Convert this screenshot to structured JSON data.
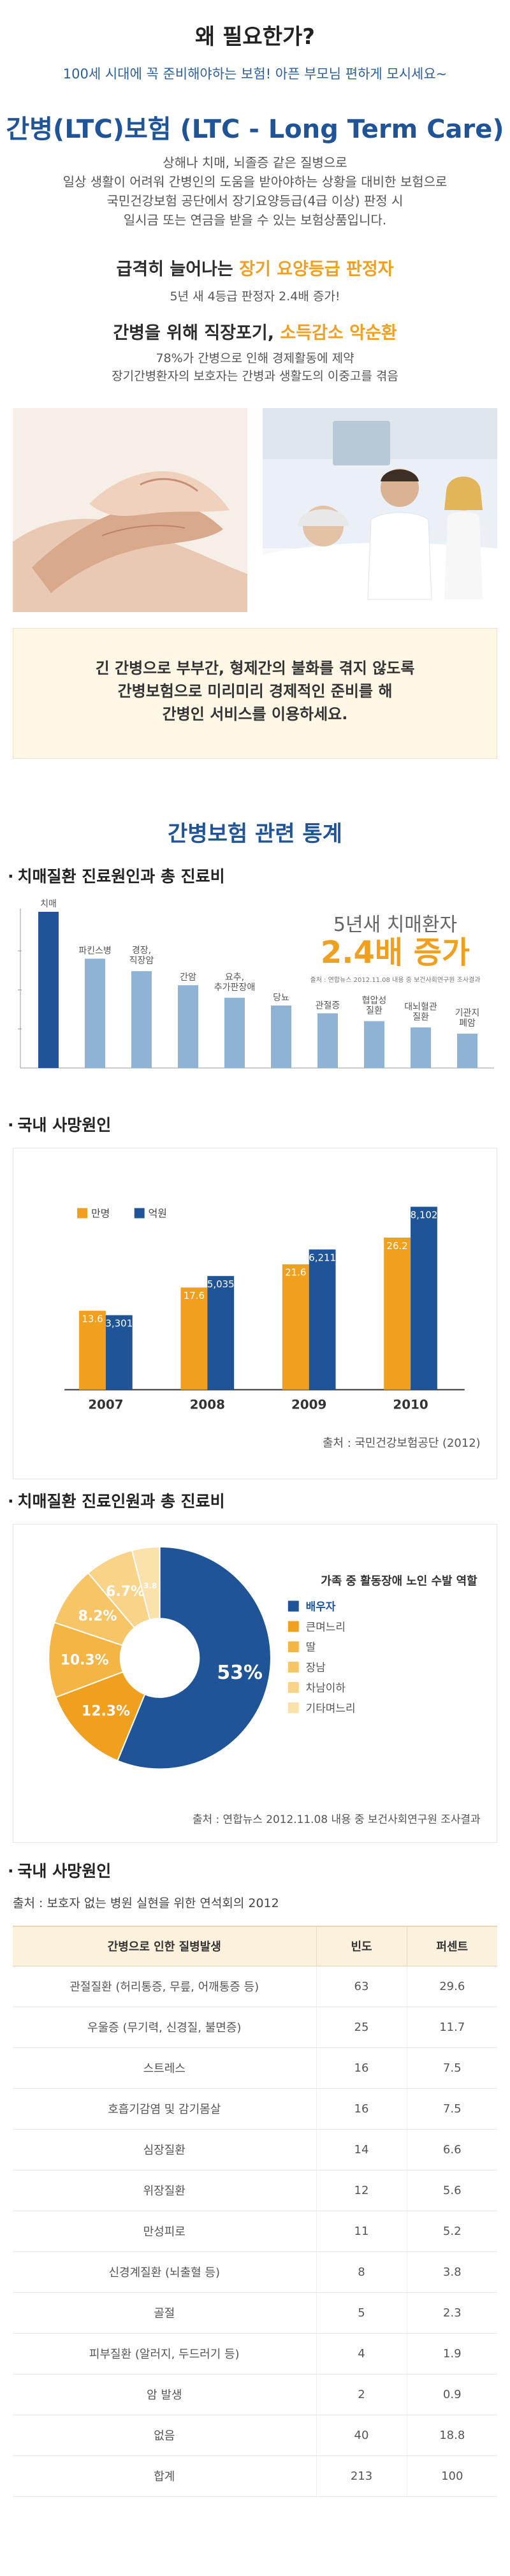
{
  "intro": {
    "title": "왜 필요한가?",
    "subtitle": "100세 시대에 꼭 준비해야하는 보험! 아픈 부모님 편하게 모시세요~",
    "ltc_title": "간병(LTC)보험 (LTC - Long Term Care)",
    "ltc_lines": [
      "상해나 치매, 뇌졸증 같은 질병으로",
      "일상 생활이 어려워 간병인의 도움을 받아야하는 상황을 대비한 보험으로",
      "국민건강보험 공단에서 장기요양등급(4급 이상) 판정 시",
      "일시금 또는 연금을 받을 수 있는 보험상품입니다."
    ],
    "rise_prefix": "급격히 늘어나는 ",
    "rise_highlight": "장기 요양등급 판정자",
    "rise_sub": "5년 새 4등급 판정자 2.4배 증가!",
    "care_prefix": "간병을 위해 직장포기, ",
    "care_highlight": "소득감소 악순환",
    "care_lines": [
      "78%가 간병으로 인해 경제활동에 제약",
      "장기간병환자의 보호자는 간병과 생활도의 이중고를 겪음"
    ],
    "notice_lines": [
      "긴 간병으로 부부간, 형제간의 불화를 겪지 않도록",
      "간병보험으로 미리미리 경제적인 준비를 해",
      "간병인 서비스를 이용하세요."
    ]
  },
  "stats": {
    "title": "간병보험 관련 통계",
    "section1_label": "치매질환 진료원인과 총 진료비",
    "section2_label": "국내 사망원인",
    "section3_label": "치매질환 진료인원과 총 진료비",
    "section4_label": "국내 사망원인"
  },
  "colors": {
    "blue": "#1f5598",
    "light_blue": "#8fb3d4",
    "orange": "#f0a01e"
  },
  "chart_data": [
    {
      "type": "bar",
      "categories": [
        "치매",
        "파킨스병",
        "경장,\n직장암",
        "간암",
        "요추,\n추가판장애",
        "당뇨",
        "관절증",
        "협압성\n질환",
        "대뇌혈관\n질환",
        "기관지\n폐암"
      ],
      "values": [
        100,
        70,
        62,
        53,
        45,
        40,
        35,
        30,
        26,
        22
      ],
      "callout_line1": "5년새 치매환자",
      "callout_line2": "2.4배 증가",
      "source": "출처 : 연합뉴스 2012.11.08 내용 중 보건사회연구원 조사결과"
    },
    {
      "type": "bar",
      "categories": [
        "2007",
        "2008",
        "2009",
        "2010"
      ],
      "series": [
        {
          "name": "만명",
          "values": [
            13.6,
            17.6,
            21.6,
            26.2
          ]
        },
        {
          "name": "억원",
          "values": [
            3301,
            5035,
            6211,
            8102
          ]
        }
      ],
      "ylim_left": [
        0,
        35
      ],
      "ylim_right": [
        0,
        9000
      ],
      "source": "출처 : 국민건강보험공단 (2012)"
    },
    {
      "type": "pie",
      "legend_title": "가족 중 활동장애 노인 수발 역할",
      "slices": [
        {
          "label": "배우자",
          "value": 53,
          "pct": "53%",
          "color": "#1f5598"
        },
        {
          "label": "큰며느리",
          "value": 12.3,
          "pct": "12.3%",
          "color": "#f0a01e"
        },
        {
          "label": "딸",
          "value": 10.3,
          "pct": "10.3%",
          "color": "#f5b544"
        },
        {
          "label": "장남",
          "value": 8.2,
          "pct": "8.2%",
          "color": "#f7c466"
        },
        {
          "label": "차남이하",
          "value": 6.7,
          "pct": "6.7%",
          "color": "#f9d388"
        },
        {
          "label": "기타며느리",
          "value": 3.8,
          "pct": "3.8",
          "color": "#fbe2ad"
        }
      ],
      "source": "출처 : 연합뉴스 2012.11.08 내용 중 보건사회연구원 조사결과"
    },
    {
      "type": "table",
      "source": "출처 : 보호자 없는 병원 실현을 위한 연석회의 2012",
      "headers": [
        "간병으로 인한 질병발생",
        "빈도",
        "퍼센트"
      ],
      "rows": [
        [
          "관절질환 (허리통증, 무릎, 어깨통증 등)",
          "63",
          "29.6"
        ],
        [
          "우울증 (무기력, 신경질, 불면증)",
          "25",
          "11.7"
        ],
        [
          "스트레스",
          "16",
          "7.5"
        ],
        [
          "호흡기감염 및 감기몸살",
          "16",
          "7.5"
        ],
        [
          "심장질환",
          "14",
          "6.6"
        ],
        [
          "위장질환",
          "12",
          "5.6"
        ],
        [
          "만성피로",
          "11",
          "5.2"
        ],
        [
          "신경계질환 (뇌출혈 등)",
          "8",
          "3.8"
        ],
        [
          "골절",
          "5",
          "2.3"
        ],
        [
          "피부질환 (알러지, 두드러기 등)",
          "4",
          "1.9"
        ],
        [
          "암 발생",
          "2",
          "0.9"
        ],
        [
          "없음",
          "40",
          "18.8"
        ],
        [
          "합계",
          "213",
          "100"
        ]
      ]
    }
  ]
}
